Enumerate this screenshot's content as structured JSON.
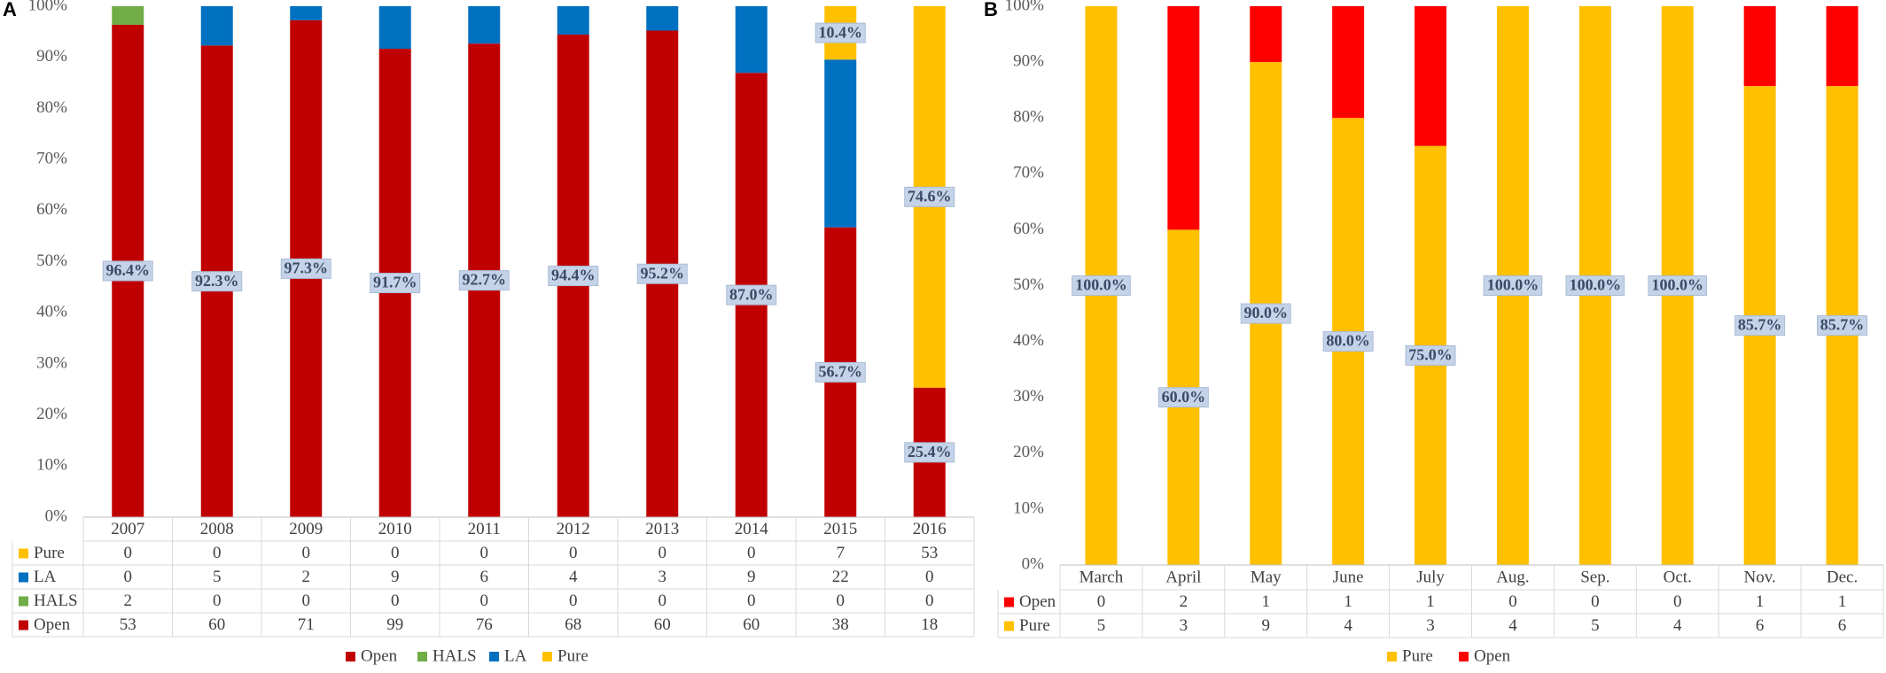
{
  "chart_data": [
    {
      "panel": "A",
      "type": "bar",
      "stacked": "percent",
      "categories": [
        "2007",
        "2008",
        "2009",
        "2010",
        "2011",
        "2012",
        "2013",
        "2014",
        "2015",
        "2016"
      ],
      "series": [
        {
          "name": "Open",
          "color": "#c00000",
          "values": [
            53,
            60,
            71,
            99,
            76,
            68,
            60,
            60,
            38,
            18
          ]
        },
        {
          "name": "HALS",
          "color": "#70ad47",
          "values": [
            2,
            0,
            0,
            0,
            0,
            0,
            0,
            0,
            0,
            0
          ]
        },
        {
          "name": "LA",
          "color": "#0070c0",
          "values": [
            0,
            5,
            2,
            9,
            6,
            4,
            3,
            9,
            22,
            0
          ]
        },
        {
          "name": "Pure",
          "color": "#ffc000",
          "values": [
            0,
            0,
            0,
            0,
            0,
            0,
            0,
            0,
            7,
            53
          ]
        }
      ],
      "data_labels": [
        {
          "series": "Open",
          "category": "2007",
          "text": "96.4%"
        },
        {
          "series": "Open",
          "category": "2008",
          "text": "92.3%"
        },
        {
          "series": "Open",
          "category": "2009",
          "text": "97.3%"
        },
        {
          "series": "Open",
          "category": "2010",
          "text": "91.7%"
        },
        {
          "series": "Open",
          "category": "2011",
          "text": "92.7%"
        },
        {
          "series": "Open",
          "category": "2012",
          "text": "94.4%"
        },
        {
          "series": "Open",
          "category": "2013",
          "text": "95.2%"
        },
        {
          "series": "Open",
          "category": "2014",
          "text": "87.0%"
        },
        {
          "series": "Open",
          "category": "2015",
          "text": "56.7%"
        },
        {
          "series": "Pure",
          "category": "2015",
          "text": "10.4%"
        },
        {
          "series": "Open",
          "category": "2016",
          "text": "25.4%"
        },
        {
          "series": "Pure",
          "category": "2016",
          "text": "74.6%"
        }
      ],
      "table_rows": [
        "Pure",
        "LA",
        "HALS",
        "Open"
      ],
      "legend": [
        "Open",
        "HALS",
        "LA",
        "Pure"
      ],
      "legend_position": "bottom",
      "yticks": [
        "0%",
        "10%",
        "20%",
        "30%",
        "40%",
        "50%",
        "60%",
        "70%",
        "80%",
        "90%",
        "100%"
      ],
      "ylim": [
        0,
        100
      ],
      "grid": false
    },
    {
      "panel": "B",
      "type": "bar",
      "stacked": "percent",
      "categories": [
        "March",
        "April",
        "May",
        "June",
        "July",
        "Aug.",
        "Sep.",
        "Oct.",
        "Nov.",
        "Dec."
      ],
      "series": [
        {
          "name": "Pure",
          "color": "#ffc000",
          "values": [
            5,
            3,
            9,
            4,
            3,
            4,
            5,
            4,
            6,
            6
          ]
        },
        {
          "name": "Open",
          "color": "#ff0000",
          "values": [
            0,
            2,
            1,
            1,
            1,
            0,
            0,
            0,
            1,
            1
          ]
        }
      ],
      "data_labels": [
        {
          "series": "Pure",
          "category": "March",
          "text": "100.0%"
        },
        {
          "series": "Pure",
          "category": "April",
          "text": "60.0%"
        },
        {
          "series": "Pure",
          "category": "May",
          "text": "90.0%"
        },
        {
          "series": "Pure",
          "category": "June",
          "text": "80.0%"
        },
        {
          "series": "Pure",
          "category": "July",
          "text": "75.0%"
        },
        {
          "series": "Pure",
          "category": "Aug.",
          "text": "100.0%"
        },
        {
          "series": "Pure",
          "category": "Sep.",
          "text": "100.0%"
        },
        {
          "series": "Pure",
          "category": "Oct.",
          "text": "100.0%"
        },
        {
          "series": "Pure",
          "category": "Nov.",
          "text": "85.7%"
        },
        {
          "series": "Pure",
          "category": "Dec.",
          "text": "85.7%"
        }
      ],
      "table_rows": [
        "Open",
        "Pure"
      ],
      "legend": [
        "Pure",
        "Open"
      ],
      "legend_position": "bottom",
      "yticks": [
        "0%",
        "10%",
        "20%",
        "30%",
        "40%",
        "50%",
        "60%",
        "70%",
        "80%",
        "90%",
        "100%"
      ],
      "ylim": [
        0,
        100
      ],
      "grid": false
    }
  ]
}
